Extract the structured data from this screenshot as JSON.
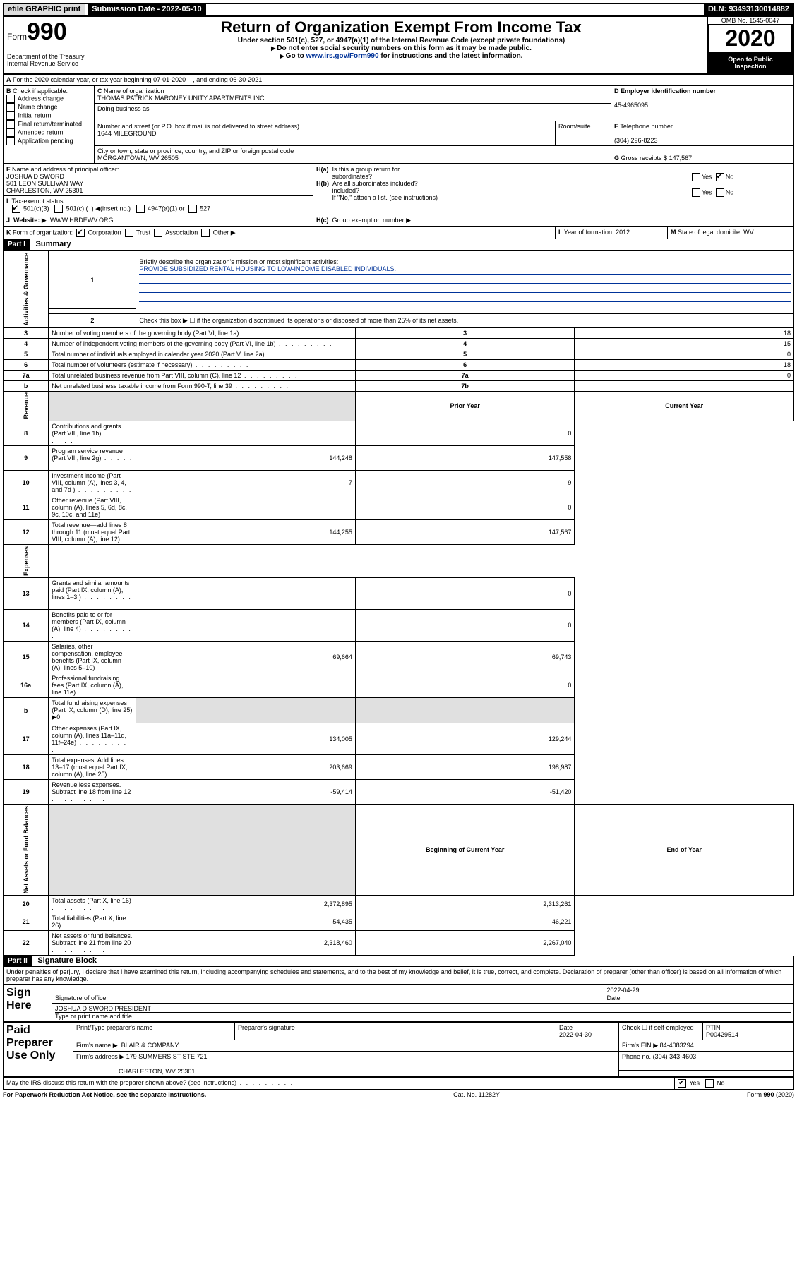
{
  "topbar": {
    "efile": "efile GRAPHIC print",
    "submission_label": "Submission Date - 2022-05-10",
    "dln_label": "DLN: 93493130014882"
  },
  "header": {
    "form_label": "Form",
    "form_num": "990",
    "dept": "Department of the Treasury",
    "irs": "Internal Revenue Service",
    "title": "Return of Organization Exempt From Income Tax",
    "subtitle1": "Under section 501(c), 527, or 4947(a)(1) of the Internal Revenue Code (except private foundations)",
    "subtitle2": "Do not enter social security numbers on this form as it may be made public.",
    "subtitle3_a": "Go to ",
    "subtitle3_link": "www.irs.gov/Form990",
    "subtitle3_b": " for instructions and the latest information.",
    "omb": "OMB No. 1545-0047",
    "year": "2020",
    "inspect1": "Open to Public",
    "inspect2": "Inspection"
  },
  "period": {
    "line_a": "For the 2020 calendar year, or tax year beginning 07-01-2020",
    "line_b": ", and ending 06-30-2021"
  },
  "boxB": {
    "hdr": "Check if applicable:",
    "items": [
      "Address change",
      "Name change",
      "Initial return",
      "Final return/terminated",
      "Amended return",
      "Application pending"
    ]
  },
  "boxC": {
    "name_lbl": "Name of organization",
    "name": "THOMAS PATRICK MARONEY UNITY APARTMENTS INC",
    "dba_lbl": "Doing business as",
    "addr_lbl": "Number and street (or P.O. box if mail is not delivered to street address)",
    "room_lbl": "Room/suite",
    "addr": "1644 MILEGROUND",
    "city_lbl": "City or town, state or province, country, and ZIP or foreign postal code",
    "city": "MORGANTOWN, WV  26505"
  },
  "boxD": {
    "lbl": "Employer identification number",
    "val": "45-4965095"
  },
  "boxE": {
    "lbl": "Telephone number",
    "val": "(304) 296-8223"
  },
  "boxG": {
    "lbl": "Gross receipts $",
    "val": "147,567"
  },
  "boxF": {
    "lbl": "Name and address of principal officer:",
    "name": "JOSHUA D SWORD",
    "addr1": "501 LEON SULLIVAN WAY",
    "addr2": "CHARLESTON, WV  25301"
  },
  "boxH": {
    "ha": "Is this a group return for",
    "ha2": "subordinates?",
    "hb": "Are all subordinates included?",
    "hc_note": "If \"No,\" attach a list. (see instructions)",
    "hc": "Group exemption number",
    "yes": "Yes",
    "no": "No"
  },
  "boxI": {
    "lbl": "Tax-exempt status:",
    "o1": "501(c)(3)",
    "o2a": "501(c) (",
    "o2b": ") ",
    "o2c": "(insert no.)",
    "o3": "4947(a)(1) or",
    "o4": "527"
  },
  "boxJ": {
    "lbl": "Website:",
    "val": "WWW.HRDEWV.ORG"
  },
  "boxK": {
    "lbl": "Form of organization:",
    "o1": "Corporation",
    "o2": "Trust",
    "o3": "Association",
    "o4": "Other"
  },
  "boxL": {
    "lbl": "Year of formation:",
    "val": "2012"
  },
  "boxM": {
    "lbl": "State of legal domicile:",
    "val": "WV"
  },
  "part1": {
    "hdr": "Part I",
    "title": "Summary"
  },
  "summary": {
    "q1": "Briefly describe the organization's mission or most significant activities:",
    "mission": "PROVIDE SUBSIDIZED RENTAL HOUSING TO LOW-INCOME DISABLED INDIVIDUALS.",
    "q2": "Check this box ▶ ☐  if the organization discontinued its operations or disposed of more than 25% of its net assets.",
    "rows_gov": [
      {
        "n": "3",
        "d": "Number of voting members of the governing body (Part VI, line 1a)",
        "dot": true,
        "box": "3",
        "v": "18"
      },
      {
        "n": "4",
        "d": "Number of independent voting members of the governing body (Part VI, line 1b)",
        "dot": true,
        "box": "4",
        "v": "15"
      },
      {
        "n": "5",
        "d": "Total number of individuals employed in calendar year 2020 (Part V, line 2a)",
        "dot": true,
        "box": "5",
        "v": "0"
      },
      {
        "n": "6",
        "d": "Total number of volunteers (estimate if necessary)",
        "dot": true,
        "box": "6",
        "v": "18"
      },
      {
        "n": "7a",
        "d": "Total unrelated business revenue from Part VIII, column (C), line 12",
        "dot": true,
        "box": "7a",
        "v": "0"
      },
      {
        "n": "b",
        "d": "Net unrelated business taxable income from Form 990-T, line 39",
        "dot": true,
        "box": "7b",
        "v": ""
      }
    ],
    "hdr_prior": "Prior Year",
    "hdr_curr": "Current Year",
    "rows_rev": [
      {
        "n": "8",
        "d": "Contributions and grants (Part VIII, line 1h)",
        "dot": true,
        "p": "",
        "c": "0"
      },
      {
        "n": "9",
        "d": "Program service revenue (Part VIII, line 2g)",
        "dot": true,
        "p": "144,248",
        "c": "147,558"
      },
      {
        "n": "10",
        "d": "Investment income (Part VIII, column (A), lines 3, 4, and 7d )",
        "dot": true,
        "p": "7",
        "c": "9"
      },
      {
        "n": "11",
        "d": "Other revenue (Part VIII, column (A), lines 5, 6d, 8c, 9c, 10c, and 11e)",
        "dot": false,
        "p": "",
        "c": "0"
      },
      {
        "n": "12",
        "d": "Total revenue—add lines 8 through 11 (must equal Part VIII, column (A), line 12)",
        "dot": false,
        "p": "144,255",
        "c": "147,567"
      }
    ],
    "rows_exp": [
      {
        "n": "13",
        "d": "Grants and similar amounts paid (Part IX, column (A), lines 1–3 )",
        "dot": true,
        "p": "",
        "c": "0"
      },
      {
        "n": "14",
        "d": "Benefits paid to or for members (Part IX, column (A), line 4)",
        "dot": true,
        "p": "",
        "c": "0"
      },
      {
        "n": "15",
        "d": "Salaries, other compensation, employee benefits (Part IX, column (A), lines 5–10)",
        "dot": false,
        "p": "69,664",
        "c": "69,743"
      },
      {
        "n": "16a",
        "d": "Professional fundraising fees (Part IX, column (A), line 11e)",
        "dot": true,
        "p": "",
        "c": "0"
      }
    ],
    "fund_b": "Total fundraising expenses (Part IX, column (D), line 25) ▶",
    "fund_b_val": "0",
    "rows_exp2": [
      {
        "n": "17",
        "d": "Other expenses (Part IX, column (A), lines 11a–11d, 11f–24e)",
        "dot": true,
        "p": "134,005",
        "c": "129,244"
      },
      {
        "n": "18",
        "d": "Total expenses. Add lines 13–17 (must equal Part IX, column (A), line 25)",
        "dot": false,
        "p": "203,669",
        "c": "198,987"
      },
      {
        "n": "19",
        "d": "Revenue less expenses. Subtract line 18 from line 12",
        "dot": true,
        "p": "-59,414",
        "c": "-51,420"
      }
    ],
    "hdr_begin": "Beginning of Current Year",
    "hdr_end": "End of Year",
    "rows_net": [
      {
        "n": "20",
        "d": "Total assets (Part X, line 16)",
        "dot": true,
        "p": "2,372,895",
        "c": "2,313,261"
      },
      {
        "n": "21",
        "d": "Total liabilities (Part X, line 26)",
        "dot": true,
        "p": "54,435",
        "c": "46,221"
      },
      {
        "n": "22",
        "d": "Net assets or fund balances. Subtract line 21 from line 20",
        "dot": true,
        "p": "2,318,460",
        "c": "2,267,040"
      }
    ],
    "side_gov": "Activities & Governance",
    "side_rev": "Revenue",
    "side_exp": "Expenses",
    "side_net": "Net Assets or Fund Balances"
  },
  "part2": {
    "hdr": "Part II",
    "title": "Signature Block"
  },
  "perjury": "Under penalties of perjury, I declare that I have examined this return, including accompanying schedules and statements, and to the best of my knowledge and belief, it is true, correct, and complete. Declaration of preparer (other than officer) is based on all information of which preparer has any knowledge.",
  "sign": {
    "here": "Sign Here",
    "sig_officer": "Signature of officer",
    "date_lbl": "Date",
    "date": "2022-04-29",
    "name": "JOSHUA D SWORD  PRESIDENT",
    "type_lbl": "Type or print name and title"
  },
  "paid": {
    "lbl": "Paid Preparer Use Only",
    "print_lbl": "Print/Type preparer's name",
    "sig_lbl": "Preparer's signature",
    "date_lbl": "Date",
    "date": "2022-04-30",
    "check_lbl": "Check ☐ if self-employed",
    "ptin_lbl": "PTIN",
    "ptin": "P00429514",
    "firm_name_lbl": "Firm's name   ▶",
    "firm_name": "BLAIR & COMPANY",
    "firm_ein_lbl": "Firm's EIN ▶",
    "firm_ein": "84-4083294",
    "firm_addr_lbl": "Firm's address ▶",
    "firm_addr1": "179 SUMMERS ST STE 721",
    "firm_addr2": "CHARLESTON, WV  25301",
    "phone_lbl": "Phone no.",
    "phone": "(304) 343-4603"
  },
  "discuss": {
    "q": "May the IRS discuss this return with the preparer shown above? (see instructions)",
    "yes": "Yes",
    "no": "No"
  },
  "footer": {
    "left": "For Paperwork Reduction Act Notice, see the separate instructions.",
    "mid": "Cat. No. 11282Y",
    "right": "Form 990 (2020)"
  }
}
